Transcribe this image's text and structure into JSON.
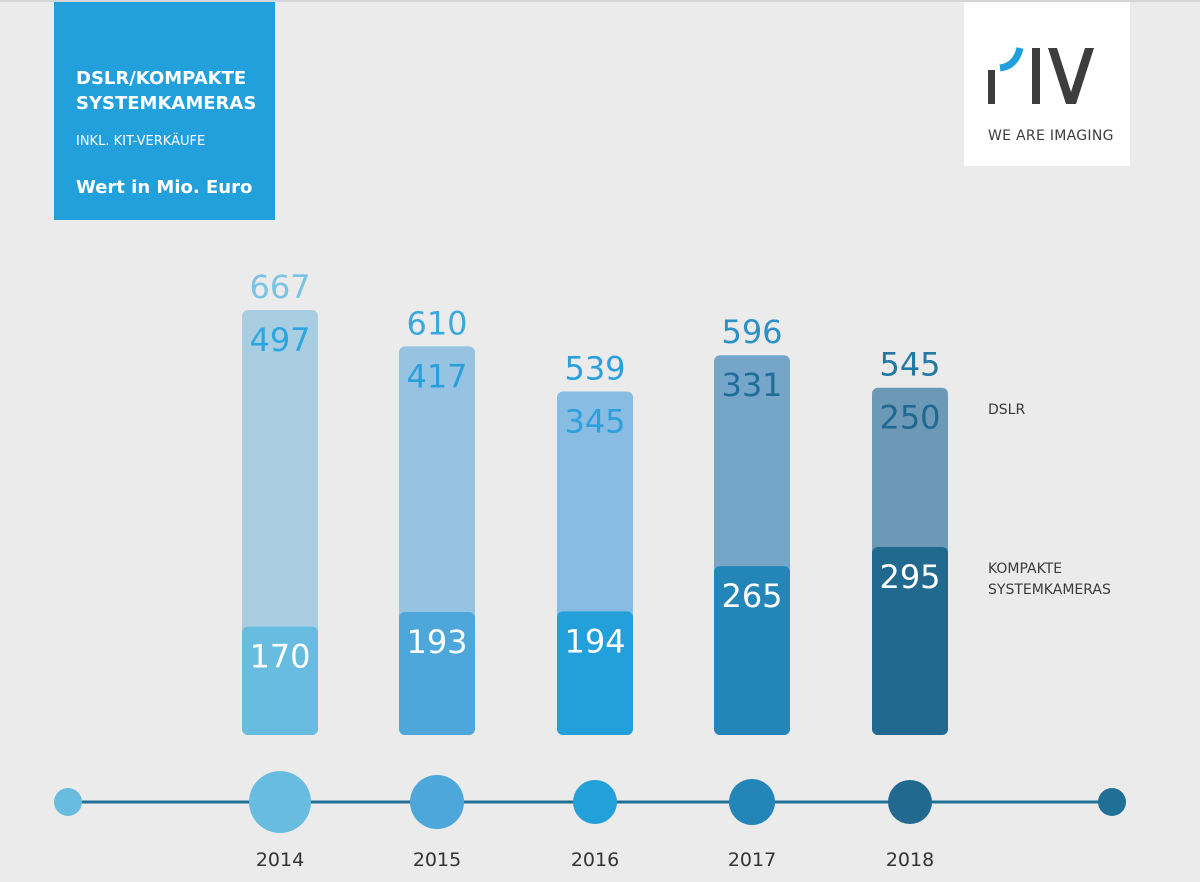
{
  "header": {
    "title": "DSLR/KOMPAKTE\nSYSTEMKAMERAS",
    "subtitle": "INKL. KIT-VERKÄUFE",
    "unit": "Wert in Mio. Euro"
  },
  "logo": {
    "mark": "PIV",
    "tagline": "WE ARE IMAGING"
  },
  "legend": {
    "dslr": "DSLR",
    "csc": "KOMPAKTE\nSYSTEMKAMERAS"
  },
  "colors": {
    "title_bg": "#22a0dc",
    "timeline": "#1f6f96",
    "year_colors": [
      "#68bcdf",
      "#4ea7da",
      "#239fda",
      "#2485b9",
      "#21698f"
    ],
    "dslr_colors": [
      "#a9cde1",
      "#95c3e1",
      "#88bce3",
      "#75a6c9",
      "#6c99b6"
    ],
    "total_label_colors": [
      "#79c3e3",
      "#3aa9de",
      "#2aa1dd",
      "#2d91c5",
      "#2279a5"
    ],
    "dslr_label_colors": [
      "#2aa6e1",
      "#2a9fdc",
      "#2d9fdb",
      "#1f6e98",
      "#1f6891"
    ]
  },
  "chart_data": {
    "type": "bar",
    "stacked": true,
    "categories": [
      "2014",
      "2015",
      "2016",
      "2017",
      "2018"
    ],
    "series": [
      {
        "name": "DSLR",
        "values": [
          497,
          417,
          345,
          331,
          250
        ]
      },
      {
        "name": "KOMPAKTE SYSTEMKAMERAS",
        "values": [
          170,
          193,
          194,
          265,
          295
        ]
      }
    ],
    "totals": [
      667,
      610,
      539,
      596,
      545
    ],
    "title": "DSLR/KOMPAKTE SYSTEMKAMERAS",
    "ylabel": "Wert in Mio. Euro",
    "ylim": [
      0,
      667
    ],
    "grid": false,
    "legend": "right"
  }
}
